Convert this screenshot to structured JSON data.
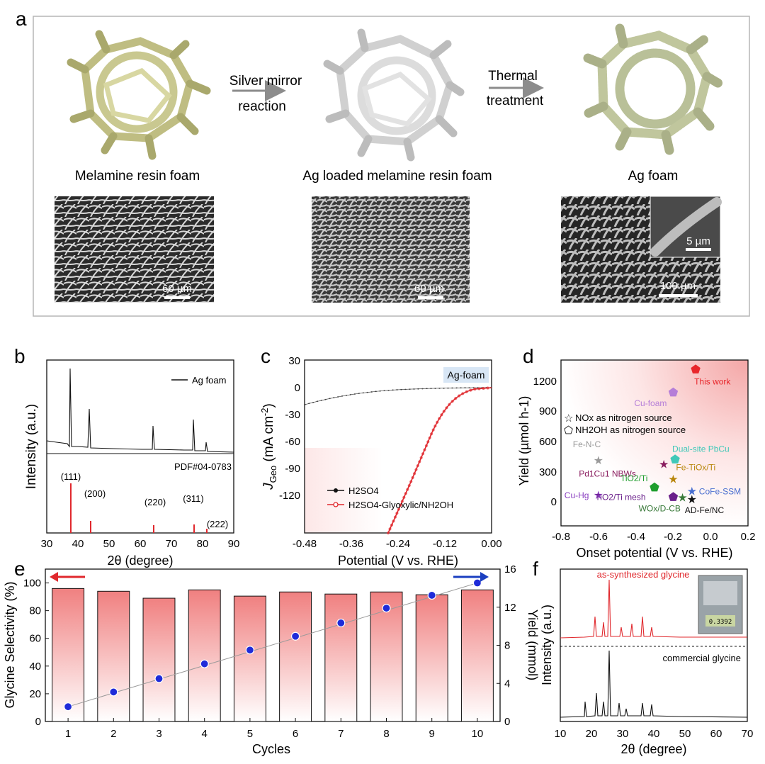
{
  "panel_a": {
    "letter": "a",
    "arrow1_line1": "Silver mirror",
    "arrow1_line2": "reaction",
    "arrow2_line1": "Thermal",
    "arrow2_line2": "treatment",
    "label1": "Melamine resin foam",
    "label2": "Ag loaded melamine resin foam",
    "label3": "Ag foam",
    "scale1": "60 µm",
    "scale2": "60 µm",
    "scale3": "100 µm",
    "scale3_inset": "5 µm"
  },
  "panel_b": {
    "letter": "b",
    "legend": "Ag foam",
    "pdf_label": "PDF#04-0783",
    "ylabel": "Intensity (a.u.)",
    "xlabel": "2θ (degree)",
    "xticks": [
      "30",
      "40",
      "50",
      "60",
      "70",
      "80",
      "90"
    ],
    "peaks": [
      {
        "label": "(111)",
        "two_theta": 38.1
      },
      {
        "label": "(200)",
        "two_theta": 44.3
      },
      {
        "label": "(220)",
        "two_theta": 64.4
      },
      {
        "label": "(311)",
        "two_theta": 77.4
      },
      {
        "label": "(222)",
        "two_theta": 81.5
      }
    ]
  },
  "panel_c": {
    "letter": "c",
    "ylabel": "J",
    "ylabel_sub": "Geo",
    "ylabel_unit": " (mA cm",
    "ylabel_sup": "-2",
    "ylabel_end": ")",
    "xlabel": "Potential (V vs. RHE)",
    "tag": "Ag-foam",
    "yticks": [
      "30",
      "0",
      "-30",
      "-60",
      "-90",
      "-120"
    ],
    "xticks": [
      "-0.48",
      "-0.36",
      "-0.24",
      "-0.12",
      "0.00"
    ],
    "legend1": "H2SO4",
    "legend2": "H2SO4-Glyoxylic/NH2OH"
  },
  "panel_d": {
    "letter": "d",
    "ylabel": "Yield (µmol h-1)",
    "xlabel": "Onset potential (V vs. RHE)",
    "yticks": [
      "0",
      "300",
      "600",
      "900",
      "1200"
    ],
    "xticks": [
      "-0.8",
      "-0.6",
      "-0.4",
      "-0.2",
      "0.0",
      "0.2"
    ],
    "legend_star": "NOx as nitrogen source",
    "legend_pentagon": "NH2OH as nitrogen source",
    "points": [
      {
        "name": "This work",
        "x": -0.08,
        "y": 1330,
        "shape": "pentagon",
        "color": "#e8262b"
      },
      {
        "name": "Cu-foam",
        "x": -0.2,
        "y": 1100,
        "shape": "pentagon",
        "color": "#b57ed8"
      },
      {
        "name": "Fe-N-C",
        "x": -0.6,
        "y": 420,
        "shape": "star",
        "color": "#9a9a9a"
      },
      {
        "name": "Dual-site PbCu",
        "x": -0.19,
        "y": 430,
        "shape": "pentagon",
        "color": "#40c8b8"
      },
      {
        "name": "Pd1Cu1 NBWs",
        "x": -0.25,
        "y": 380,
        "shape": "star",
        "color": "#8a1d5f"
      },
      {
        "name": "Fe-TiOx/Ti",
        "x": -0.2,
        "y": 230,
        "shape": "star",
        "color": "#b8860b"
      },
      {
        "name": "TiO2/Ti",
        "x": -0.3,
        "y": 150,
        "shape": "pentagon",
        "color": "#1f9e2e"
      },
      {
        "name": "Cu-Hg",
        "x": -0.6,
        "y": 70,
        "shape": "star",
        "color": "#8a3fc0"
      },
      {
        "name": "TiO2/Ti mesh",
        "x": -0.2,
        "y": 55,
        "shape": "pentagon",
        "color": "#6a1f8a"
      },
      {
        "name": "CoFe-SSM",
        "x": -0.1,
        "y": 110,
        "shape": "star",
        "color": "#4a6fd0"
      },
      {
        "name": "WOx/D-CB",
        "x": -0.15,
        "y": 45,
        "shape": "star",
        "color": "#3a7a3a"
      },
      {
        "name": "AD-Fe/NC",
        "x": -0.1,
        "y": 30,
        "shape": "star",
        "color": "#111111"
      }
    ]
  },
  "panel_e": {
    "letter": "e",
    "ylabel_left": "Glycine Selectivity (%)",
    "ylabel_right": "Yield (mmol)",
    "xlabel": "Cycles"
  },
  "panel_f": {
    "letter": "f",
    "label_top": "as-synthesized glycine",
    "label_bottom": "commercial glycine",
    "ylabel": "Intensity (a.u.)",
    "xlabel": "2θ (degree)",
    "xticks": [
      "10",
      "20",
      "30",
      "40",
      "50",
      "60",
      "70"
    ],
    "balance_readout": "0.3392"
  },
  "chart_data": [
    {
      "type": "bar",
      "panel": "e",
      "xlabel": "Cycles",
      "ylabel": "Glycine Selectivity (%)",
      "y2label": "Yield (mmol)",
      "categories": [
        "1",
        "2",
        "3",
        "4",
        "5",
        "6",
        "7",
        "8",
        "9",
        "10"
      ],
      "series": [
        {
          "name": "Glycine Selectivity (%)",
          "axis": "left",
          "type": "bar",
          "values": [
            96,
            94,
            89,
            95,
            90.5,
            93.5,
            92,
            93.5,
            91.5,
            95
          ]
        },
        {
          "name": "Yield (mmol)",
          "axis": "right",
          "type": "scatter",
          "values": [
            1.55,
            3.1,
            4.5,
            6.05,
            7.5,
            8.95,
            10.35,
            11.9,
            13.25,
            14.55
          ]
        }
      ],
      "ylim": [
        0,
        110
      ],
      "y2lim": [
        0,
        16
      ],
      "yticks": [
        "0",
        "20",
        "40",
        "60",
        "80",
        "100"
      ],
      "y2ticks": [
        "0",
        "4",
        "8",
        "12",
        "16"
      ]
    }
  ]
}
